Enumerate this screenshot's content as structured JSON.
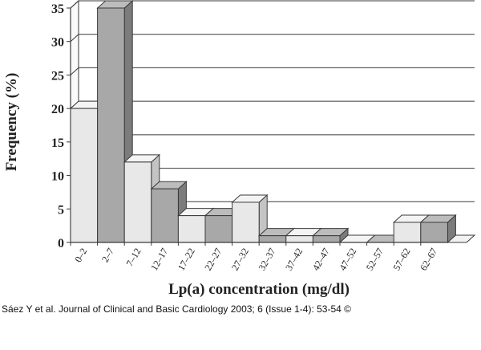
{
  "chart_data": {
    "type": "bar",
    "style": "3d",
    "xlabel": "Lp(a) concentration (mg/dl)",
    "ylabel": "Frequency (%)",
    "ylim": [
      0,
      35
    ],
    "yticks": [
      0,
      5,
      10,
      15,
      20,
      25,
      30,
      35
    ],
    "grid": true,
    "categories": [
      "0–2",
      "2–7",
      "7–12",
      "12–17",
      "17–22",
      "22–27",
      "27–32",
      "32–37",
      "37–42",
      "42–47",
      "47–52",
      "52–57",
      "57–62",
      "62–67"
    ],
    "values": [
      20,
      35,
      12,
      8,
      4,
      4,
      6,
      1,
      1,
      1,
      0,
      0,
      3,
      3
    ],
    "colors": {
      "light": "#e8e8e8",
      "dark": "#a8a8a8",
      "edge": "#3a3a3a"
    }
  },
  "caption": "Sáez Y et al. Journal of Clinical and Basic Cardiology 2003; 6 (Issue 1-4): 53-54 ©"
}
